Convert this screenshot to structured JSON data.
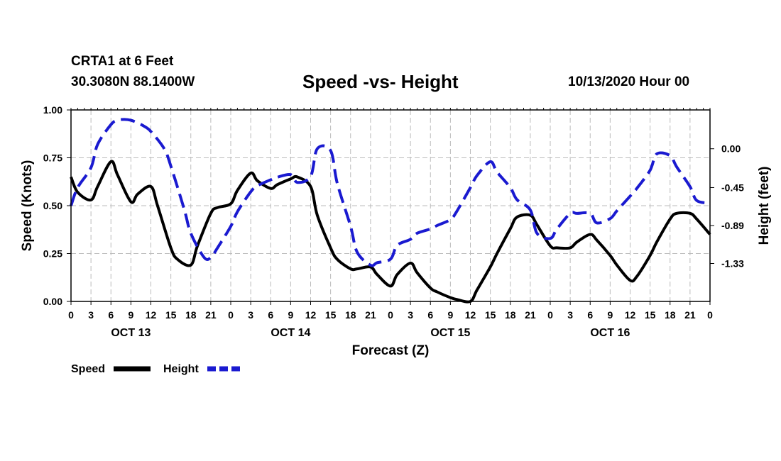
{
  "header": {
    "station": "CRTA1 at 6 Feet",
    "coords": "30.3080N 88.1400W",
    "title": "Speed -vs- Height",
    "datetime": "10/13/2020 Hour 00"
  },
  "colors": {
    "speed": "#000000",
    "height": "#1a1ad0",
    "grid": "#bbbbbb"
  },
  "chart_data": {
    "type": "line",
    "title": "Speed -vs- Height",
    "xlabel": "Forecast (Z)",
    "ylabel": "Speed (Knots)",
    "y2label": "Height (feet)",
    "xlim": [
      0,
      96
    ],
    "ylim": [
      0,
      1.0
    ],
    "y2lim": [
      -1.77,
      0.45
    ],
    "x_ticks": [
      0,
      3,
      6,
      9,
      12,
      15,
      18,
      21,
      24,
      27,
      30,
      33,
      36,
      39,
      42,
      45,
      48,
      51,
      54,
      57,
      60,
      63,
      66,
      69,
      72,
      75,
      78,
      81,
      84,
      87,
      90,
      93,
      96
    ],
    "x_tick_labels": [
      "0",
      "3",
      "6",
      "9",
      "12",
      "15",
      "18",
      "21",
      "0",
      "3",
      "6",
      "9",
      "12",
      "15",
      "18",
      "21",
      "0",
      "3",
      "6",
      "9",
      "12",
      "15",
      "18",
      "21",
      "0",
      "3",
      "6",
      "9",
      "12",
      "15",
      "18",
      "21",
      "0"
    ],
    "y_ticks": [
      0,
      0.25,
      0.5,
      0.75,
      1.0
    ],
    "y_tick_labels": [
      "0.00",
      "0.25",
      "0.50",
      "0.75",
      "1.00"
    ],
    "y2_ticks": [
      0.0,
      -0.45,
      -0.89,
      -1.33
    ],
    "y2_tick_labels": [
      "0.00",
      "-0.45",
      "-0.89",
      "-1.33"
    ],
    "day_labels": [
      {
        "x": 9,
        "label": "OCT 13"
      },
      {
        "x": 33,
        "label": "OCT 14"
      },
      {
        "x": 57,
        "label": "OCT 15"
      },
      {
        "x": 81,
        "label": "OCT 16"
      }
    ],
    "grid": true,
    "legend_position": "bottom-left",
    "series": [
      {
        "name": "Speed",
        "axis": "left",
        "style": "solid",
        "x": [
          0,
          1,
          3,
          4,
          6,
          7,
          9,
          10,
          12,
          13,
          15,
          16,
          18,
          19,
          21,
          22,
          24,
          25,
          27,
          28,
          30,
          31,
          33,
          34,
          36,
          37,
          39,
          40,
          42,
          43,
          45,
          46,
          48,
          49,
          51,
          52,
          54,
          55,
          57,
          58,
          60,
          61,
          63,
          64,
          66,
          67,
          69,
          70,
          72,
          73,
          75,
          76,
          78,
          79,
          81,
          82,
          84,
          85,
          87,
          88,
          90,
          91,
          93,
          94,
          96
        ],
        "values": [
          0.65,
          0.57,
          0.53,
          0.6,
          0.73,
          0.66,
          0.52,
          0.56,
          0.6,
          0.5,
          0.28,
          0.22,
          0.19,
          0.29,
          0.46,
          0.49,
          0.51,
          0.58,
          0.67,
          0.63,
          0.59,
          0.61,
          0.64,
          0.65,
          0.6,
          0.45,
          0.28,
          0.22,
          0.17,
          0.17,
          0.18,
          0.14,
          0.08,
          0.14,
          0.2,
          0.15,
          0.07,
          0.05,
          0.02,
          0.01,
          0.0,
          0.06,
          0.18,
          0.25,
          0.38,
          0.44,
          0.45,
          0.4,
          0.29,
          0.28,
          0.28,
          0.31,
          0.35,
          0.32,
          0.24,
          0.19,
          0.11,
          0.13,
          0.24,
          0.31,
          0.43,
          0.46,
          0.46,
          0.43,
          0.35
        ]
      },
      {
        "name": "Height",
        "axis": "right",
        "style": "dashed",
        "x": [
          0,
          1,
          3,
          4,
          6,
          7,
          8,
          9,
          10,
          11,
          12,
          14,
          15,
          17,
          18,
          20,
          21,
          22,
          24,
          25,
          27,
          28,
          30,
          31,
          33,
          34,
          36,
          37,
          39,
          40,
          42,
          43,
          45,
          46,
          48,
          49,
          51,
          52,
          54,
          55,
          57,
          58,
          60,
          61,
          63,
          64,
          66,
          67,
          69,
          70,
          72,
          73,
          75,
          76,
          78,
          79,
          81,
          82,
          84,
          85,
          87,
          88,
          90,
          91,
          93,
          94,
          96
        ],
        "values": [
          -0.66,
          -0.45,
          -0.22,
          0.05,
          0.28,
          0.33,
          0.34,
          0.33,
          0.3,
          0.26,
          0.2,
          0.0,
          -0.2,
          -0.7,
          -0.98,
          -1.26,
          -1.26,
          -1.15,
          -0.9,
          -0.73,
          -0.5,
          -0.43,
          -0.36,
          -0.33,
          -0.3,
          -0.39,
          -0.32,
          0.0,
          -0.02,
          -0.4,
          -0.9,
          -1.2,
          -1.35,
          -1.32,
          -1.28,
          -1.12,
          -1.05,
          -0.98,
          -0.93,
          -0.89,
          -0.82,
          -0.72,
          -0.45,
          -0.31,
          -0.15,
          -0.27,
          -0.45,
          -0.59,
          -0.71,
          -0.98,
          -1.04,
          -0.93,
          -0.75,
          -0.75,
          -0.75,
          -0.86,
          -0.81,
          -0.72,
          -0.55,
          -0.46,
          -0.25,
          -0.06,
          -0.08,
          -0.21,
          -0.44,
          -0.6,
          -0.63
        ]
      }
    ],
    "legend": [
      "Speed",
      "Height"
    ]
  }
}
